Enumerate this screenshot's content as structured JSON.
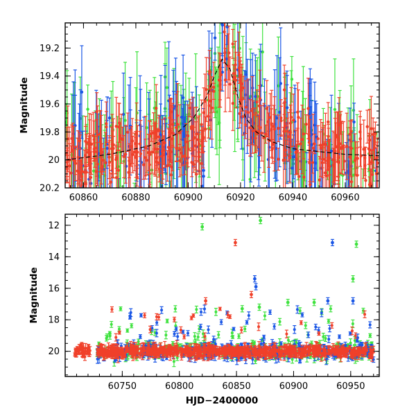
{
  "chart_data": [
    {
      "type": "scatter",
      "panel": "top",
      "title": "",
      "xlabel": "",
      "ylabel": "Magnitude",
      "xlim": [
        60853,
        60973
      ],
      "ylim": [
        20.2,
        19.02
      ],
      "y_inverted": true,
      "xticks": [
        60860,
        60880,
        60900,
        60920,
        60940,
        60960
      ],
      "yticks": [
        19.2,
        19.4,
        19.6,
        19.8,
        20,
        20.2
      ],
      "ytick_labels": [
        "19.2",
        "19.4",
        "19.6",
        "19.8",
        "20",
        "20.2"
      ],
      "series": [
        {
          "name": "blue",
          "color": "#1a56e6"
        },
        {
          "name": "green",
          "color": "#3ee23e"
        },
        {
          "name": "red",
          "color": "#f0402a"
        }
      ],
      "model_curve": {
        "style": "dashed",
        "color": "#000000",
        "x": [
          60853,
          60870,
          60885,
          60895,
          60902,
          60907,
          60910,
          60913,
          60916,
          60919,
          60922,
          60926,
          60932,
          60940,
          60950,
          60960,
          60973
        ],
        "y": [
          20.0,
          19.96,
          19.9,
          19.82,
          19.7,
          19.55,
          19.4,
          19.28,
          19.35,
          19.55,
          19.7,
          19.8,
          19.87,
          19.92,
          19.94,
          19.96,
          19.97
        ]
      }
    },
    {
      "type": "scatter",
      "panel": "bottom",
      "title": "",
      "xlabel": "HJD−2400000",
      "ylabel": "Magnitude",
      "xlim": [
        60700,
        60975
      ],
      "ylim": [
        21.6,
        11.3
      ],
      "y_inverted": true,
      "xticks": [
        60750,
        60800,
        60850,
        60900,
        60950
      ],
      "yticks": [
        12,
        14,
        16,
        18,
        20
      ],
      "ytick_labels": [
        "12",
        "14",
        "16",
        "18",
        "20"
      ],
      "series": [
        {
          "name": "blue",
          "color": "#1a56e6"
        },
        {
          "name": "green",
          "color": "#3ee23e"
        },
        {
          "name": "red",
          "color": "#f0402a"
        }
      ],
      "outliers": [
        {
          "series": "green",
          "x": 60820,
          "y": 12.1
        },
        {
          "series": "green",
          "x": 60871,
          "y": 11.7
        },
        {
          "series": "red",
          "x": 60849,
          "y": 13.1
        },
        {
          "series": "blue",
          "x": 60934,
          "y": 13.1
        },
        {
          "series": "green",
          "x": 60955,
          "y": 13.2
        },
        {
          "series": "green",
          "x": 60952,
          "y": 15.4
        },
        {
          "series": "blue",
          "x": 60866,
          "y": 15.4
        },
        {
          "series": "blue",
          "x": 60867,
          "y": 15.9
        },
        {
          "series": "red",
          "x": 60863,
          "y": 16.4
        },
        {
          "series": "blue",
          "x": 60952,
          "y": 16.8
        },
        {
          "series": "red",
          "x": 60823,
          "y": 16.8
        },
        {
          "series": "blue",
          "x": 60930,
          "y": 16.8
        },
        {
          "series": "green",
          "x": 60895,
          "y": 16.9
        },
        {
          "series": "green",
          "x": 60918,
          "y": 16.9
        },
        {
          "series": "green",
          "x": 60855,
          "y": 17.3
        },
        {
          "series": "green",
          "x": 60870,
          "y": 17.2
        }
      ]
    }
  ]
}
